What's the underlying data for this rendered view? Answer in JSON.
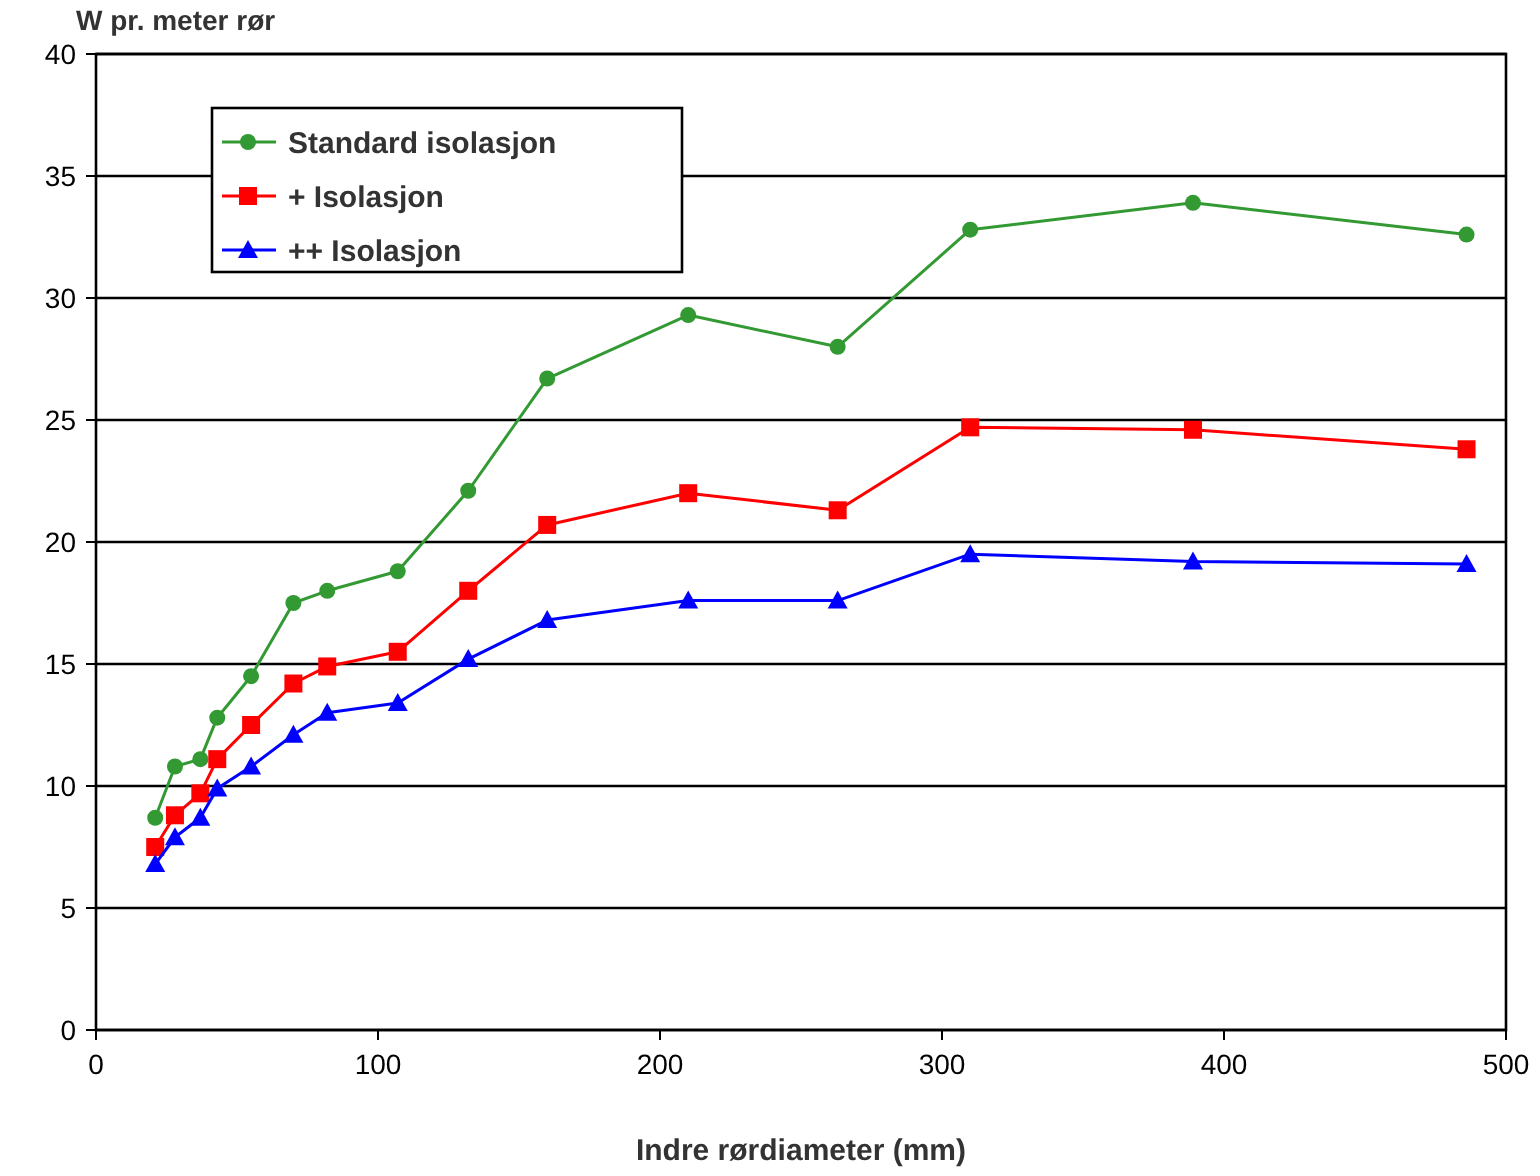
{
  "chart_data": {
    "type": "line",
    "ylabel": "W pr. meter rør",
    "xlabel": "Indre rørdiameter (mm)",
    "x": [
      21,
      28,
      37,
      43,
      55,
      70,
      82,
      107,
      132,
      160,
      210,
      263,
      310,
      389,
      486
    ],
    "series": [
      {
        "name": "Standard isolasjon",
        "color": "#339933",
        "marker": "circle",
        "values": [
          8.7,
          10.8,
          11.1,
          12.8,
          14.5,
          17.5,
          18.0,
          18.8,
          22.1,
          26.7,
          29.3,
          28.0,
          32.8,
          33.9,
          32.6
        ]
      },
      {
        "name": "+ Isolasjon",
        "color": "#ff0000",
        "marker": "square",
        "values": [
          7.5,
          8.8,
          9.7,
          11.1,
          12.5,
          14.2,
          14.9,
          15.5,
          18.0,
          20.7,
          22.0,
          21.3,
          24.7,
          24.6,
          23.8
        ]
      },
      {
        "name": "++ Isolasjon",
        "color": "#0000ff",
        "marker": "triangle",
        "values": [
          6.8,
          7.9,
          8.7,
          9.9,
          10.8,
          12.1,
          13.0,
          13.4,
          15.2,
          16.8,
          17.6,
          17.6,
          19.5,
          19.2,
          19.1
        ]
      }
    ],
    "xlim": [
      0,
      500
    ],
    "xticks": [
      0,
      100,
      200,
      300,
      400,
      500
    ],
    "ylim": [
      0,
      40
    ],
    "yticks": [
      0,
      5,
      10,
      15,
      20,
      25,
      30,
      35,
      40
    ],
    "grid": "y",
    "legend": "top left"
  }
}
